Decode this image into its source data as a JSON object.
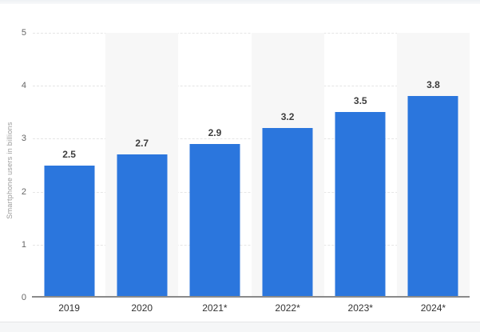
{
  "chart_data": {
    "type": "bar",
    "title": "",
    "xlabel": "",
    "ylabel": "Smartphone users in billions",
    "categories": [
      "2019",
      "2020",
      "2021*",
      "2022*",
      "2023*",
      "2024*"
    ],
    "values": [
      2.5,
      2.7,
      2.9,
      3.2,
      3.5,
      3.8
    ],
    "value_labels": [
      "2.5",
      "2.7",
      "2.9",
      "3.2",
      "3.5",
      "3.8"
    ],
    "ylim": [
      0,
      5
    ],
    "yticks": [
      0,
      1,
      2,
      3,
      4,
      5
    ],
    "grid": "horizontal-dashed",
    "legend": "none",
    "banded_column_indices": [
      1,
      3,
      5
    ]
  },
  "colors": {
    "bar": "#2b76dd",
    "band": "#f7f7f7",
    "grid": "#e5e5e5",
    "axis_line": "#8a8a8a",
    "tick_text": "#666666",
    "y_title_text": "#9b9b9b",
    "value_text": "#3d3d3d",
    "category_text": "#333333"
  }
}
